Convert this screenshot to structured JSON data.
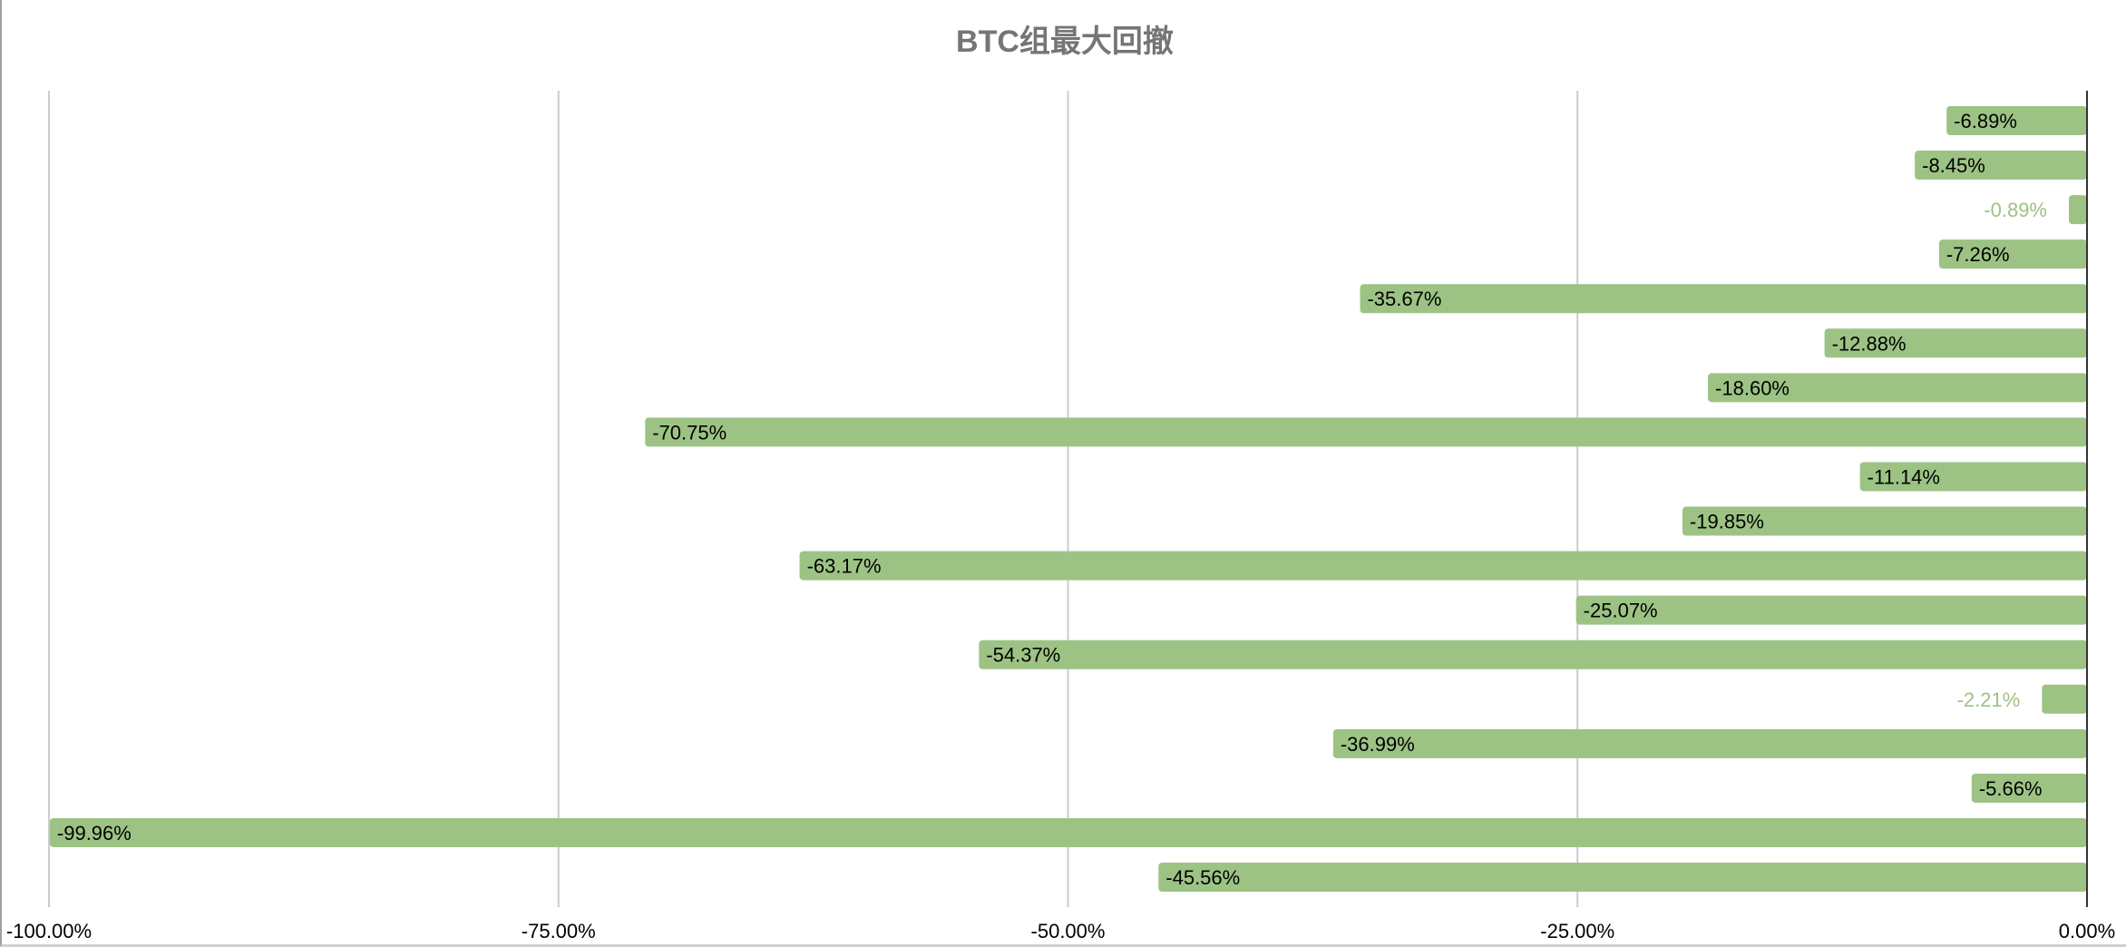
{
  "chart_data": {
    "type": "bar",
    "orientation": "horizontal",
    "title": "BTC组最大回撤",
    "xlabel": "",
    "ylabel": "",
    "xlim": [
      -100,
      0
    ],
    "grid": true,
    "x_ticks": [
      "-100.00%",
      "-75.00%",
      "-50.00%",
      "-25.00%",
      "0.00%"
    ],
    "x_tick_values": [
      -100,
      -75,
      -50,
      -25,
      0
    ],
    "values": [
      -6.89,
      -8.45,
      -0.89,
      -7.26,
      -35.67,
      -12.88,
      -18.6,
      -70.75,
      -11.14,
      -19.85,
      -63.17,
      -25.07,
      -54.37,
      -2.21,
      -36.99,
      -5.66,
      -99.96,
      -45.56
    ],
    "labels": [
      "-6.89%",
      "-8.45%",
      "-0.89%",
      "-7.26%",
      "-35.67%",
      "-12.88%",
      "-18.60%",
      "-70.75%",
      "-11.14%",
      "-19.85%",
      "-63.17%",
      "-25.07%",
      "-54.37%",
      "-2.21%",
      "-36.99%",
      "-5.66%",
      "-99.96%",
      "-45.56%"
    ],
    "colors": {
      "bar": "#9dc384",
      "label_inside": "#000000",
      "label_outside": "#9dc384",
      "grid": "#cccccc",
      "axis": "#333333"
    }
  }
}
